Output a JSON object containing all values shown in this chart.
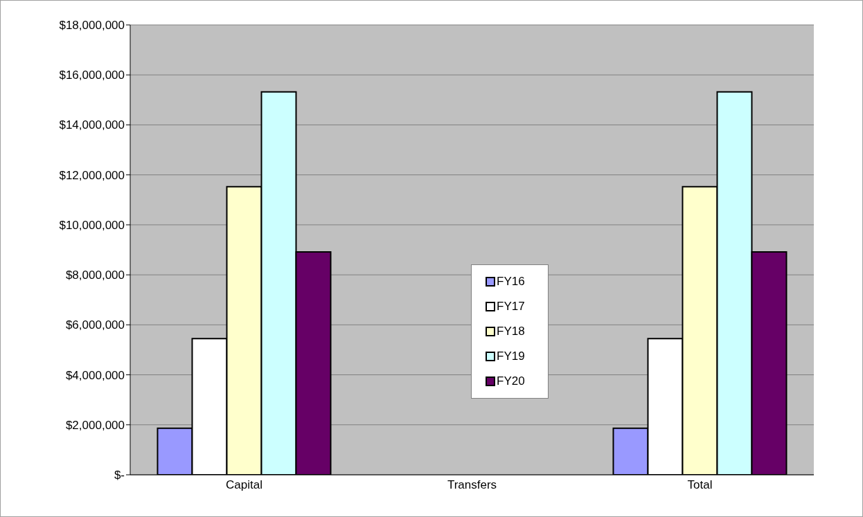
{
  "chart_data": {
    "type": "bar",
    "categories": [
      "Capital",
      "Transfers",
      "Total"
    ],
    "series": [
      {
        "name": "FY16",
        "color": "#9999ff",
        "values": [
          1860000,
          0,
          1860000
        ]
      },
      {
        "name": "FY17",
        "color": "#ffffff",
        "values": [
          5450000,
          0,
          5450000
        ]
      },
      {
        "name": "FY18",
        "color": "#ffffcc",
        "values": [
          11530000,
          0,
          11530000
        ]
      },
      {
        "name": "FY19",
        "color": "#ccffff",
        "values": [
          15320000,
          0,
          15320000
        ]
      },
      {
        "name": "FY20",
        "color": "#660066",
        "values": [
          8920000,
          0,
          8920000
        ]
      }
    ],
    "ylim": [
      0,
      18000000
    ],
    "yticks": [
      {
        "value": 0,
        "label": "$-"
      },
      {
        "value": 2000000,
        "label": "$2,000,000"
      },
      {
        "value": 4000000,
        "label": "$4,000,000"
      },
      {
        "value": 6000000,
        "label": "$6,000,000"
      },
      {
        "value": 8000000,
        "label": "$8,000,000"
      },
      {
        "value": 10000000,
        "label": "$10,000,000"
      },
      {
        "value": 12000000,
        "label": "$12,000,000"
      },
      {
        "value": 14000000,
        "label": "$14,000,000"
      },
      {
        "value": 16000000,
        "label": "$16,000,000"
      },
      {
        "value": 18000000,
        "label": "$18,000,000"
      }
    ],
    "grid": "y",
    "legend": "center"
  }
}
